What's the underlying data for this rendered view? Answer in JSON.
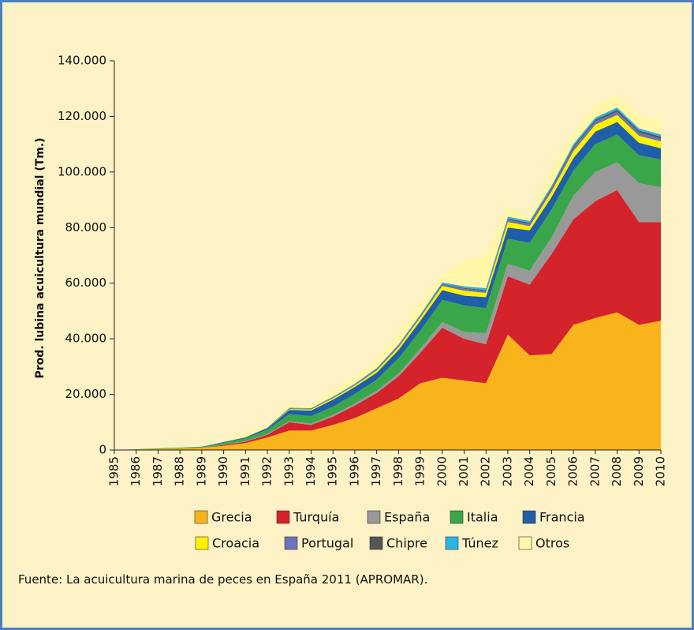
{
  "chart_data": {
    "type": "stacked_area",
    "y_label": "Prod. lubina acuicultura mundial (Tm.)",
    "source": "Fuente: La acuicultura marina de peces en España 2011 (APROMAR).",
    "categories": [
      "1985",
      "1986",
      "1987",
      "1988",
      "1989",
      "1990",
      "1991",
      "1992",
      "1993",
      "1994",
      "1995",
      "1996",
      "1997",
      "1998",
      "1999",
      "2000",
      "2001",
      "2002",
      "2003",
      "2004",
      "2005",
      "2006",
      "2007",
      "2008",
      "2009",
      "2010"
    ],
    "ylim": [
      0,
      140000
    ],
    "yticks": [
      0,
      {
        "value": 20000,
        "label": "20.000"
      },
      {
        "value": 40000,
        "label": "40.000"
      },
      {
        "value": 60000,
        "label": "60.000"
      },
      {
        "value": 80000,
        "label": "80.000"
      },
      {
        "value": 100000,
        "label": "100.000"
      },
      {
        "value": 120000,
        "label": "120.000"
      },
      {
        "value": 140000,
        "label": "140.000"
      }
    ],
    "series": [
      {
        "name": "Grecia",
        "color": "#f9b31b",
        "values": [
          0,
          200,
          400,
          600,
          800,
          1500,
          2500,
          4500,
          7000,
          7000,
          9000,
          11500,
          15000,
          18500,
          24000,
          26000,
          25000,
          24000,
          41500,
          34000,
          34500,
          45000,
          47500,
          49500,
          45000,
          46500
        ]
      },
      {
        "name": "Turquía",
        "color": "#d4232b",
        "values": [
          0,
          0,
          0,
          0,
          0,
          300,
          500,
          1000,
          3000,
          2000,
          3000,
          4500,
          5500,
          8000,
          11000,
          18000,
          15000,
          14000,
          21000,
          25500,
          36000,
          38000,
          42000,
          44000,
          37000,
          35500
        ]
      },
      {
        "name": "España",
        "color": "#999999",
        "values": [
          0,
          0,
          0,
          0,
          0,
          100,
          200,
          300,
          400,
          500,
          600,
          700,
          800,
          1000,
          1500,
          2000,
          2500,
          4000,
          4500,
          5000,
          6000,
          8500,
          10500,
          10000,
          14000,
          12500
        ]
      },
      {
        "name": "Italia",
        "color": "#3aa64a",
        "values": [
          0,
          100,
          200,
          300,
          300,
          800,
          1000,
          1500,
          2500,
          2700,
          3000,
          3500,
          4000,
          5500,
          6500,
          8000,
          9500,
          9000,
          9000,
          10000,
          10000,
          9000,
          10000,
          10000,
          10000,
          10000
        ]
      },
      {
        "name": "Francia",
        "color": "#1f5ea8",
        "values": [
          0,
          0,
          0,
          0,
          100,
          200,
          300,
          500,
          1500,
          2000,
          2500,
          2500,
          2500,
          3000,
          3500,
          3500,
          3500,
          4000,
          4000,
          4500,
          4500,
          4500,
          4500,
          4500,
          4500,
          4000
        ]
      },
      {
        "name": "Croacia",
        "color": "#fff200",
        "values": [
          0,
          0,
          0,
          0,
          0,
          0,
          0,
          0,
          300,
          400,
          500,
          500,
          800,
          1000,
          1200,
          1500,
          1800,
          1500,
          2000,
          1500,
          2000,
          2500,
          2500,
          2500,
          2500,
          2500
        ]
      },
      {
        "name": "Portugal",
        "color": "#6b74b8",
        "values": [
          0,
          0,
          0,
          0,
          0,
          0,
          100,
          100,
          200,
          200,
          300,
          300,
          400,
          500,
          500,
          600,
          700,
          700,
          800,
          800,
          900,
          1200,
          1200,
          1200,
          1200,
          1000
        ]
      },
      {
        "name": "Chipre",
        "color": "#555555",
        "values": [
          0,
          0,
          0,
          0,
          0,
          0,
          0,
          100,
          100,
          100,
          100,
          100,
          200,
          200,
          200,
          200,
          300,
          300,
          400,
          400,
          500,
          600,
          600,
          700,
          700,
          700
        ]
      },
      {
        "name": "Túnez",
        "color": "#2bb3e5",
        "values": [
          0,
          0,
          0,
          0,
          0,
          0,
          0,
          100,
          200,
          200,
          200,
          300,
          300,
          300,
          400,
          500,
          600,
          700,
          700,
          700,
          700,
          800,
          800,
          800,
          800,
          800
        ]
      },
      {
        "name": "Otros",
        "color": "#fff6a8",
        "values": [
          0,
          0,
          0,
          100,
          100,
          200,
          1500,
          1000,
          1500,
          1000,
          2500,
          2500,
          3000,
          4000,
          4000,
          2800,
          9000,
          12000,
          4000,
          1500,
          6000,
          4000,
          4500,
          4500,
          5000,
          5000
        ]
      }
    ]
  }
}
